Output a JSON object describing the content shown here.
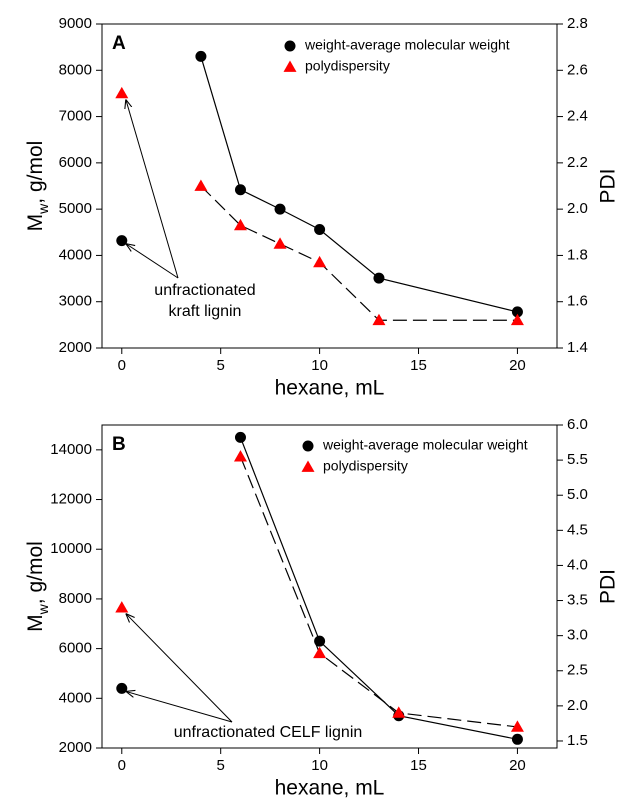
{
  "chart_data": [
    {
      "type": "line",
      "panel": "A",
      "ylabel": [
        "M",
        "w",
        ", g/mol"
      ],
      "y2label": "PDI",
      "xlabel": "hexane, mL",
      "x": [
        4,
        6,
        8,
        10,
        13,
        20
      ],
      "series": [
        {
          "name": "weight-average molecular weight",
          "color": "#000000",
          "marker": "circle",
          "linestyle": "solid",
          "values": [
            8300,
            5420,
            5000,
            4560,
            3510,
            2780
          ]
        },
        {
          "name": "polydispersity",
          "color": "#ff0000",
          "marker": "triangle",
          "linestyle": "dashed",
          "axis": "y2",
          "values": [
            2.1,
            1.93,
            1.85,
            1.77,
            1.52,
            1.52
          ]
        }
      ],
      "annotation": {
        "text": [
          "unfractionated",
          "kraft lignin"
        ],
        "x": 0,
        "values": [
          4320,
          2.5
        ]
      },
      "xlim": [
        -1,
        22
      ],
      "xticks": [
        0,
        5,
        10,
        15,
        20
      ],
      "ylim": [
        2000,
        9000
      ],
      "yticks": [
        2000,
        3000,
        4000,
        5000,
        6000,
        7000,
        8000,
        9000
      ],
      "y2lim": [
        1.4,
        2.8
      ],
      "y2ticks": [
        1.4,
        1.6,
        1.8,
        {
          "value": 2,
          "label": "2.0"
        },
        2.2,
        2.4,
        2.6,
        2.8
      ]
    },
    {
      "type": "line",
      "panel": "B",
      "ylabel": [
        "M",
        "w",
        ", g/mol"
      ],
      "y2label": "PDI",
      "xlabel": "hexane, mL",
      "x": [
        6,
        10,
        14,
        20
      ],
      "series": [
        {
          "name": "weight-average molecular weight",
          "color": "#000000",
          "marker": "circle",
          "linestyle": "solid",
          "values": [
            14500,
            6300,
            3300,
            2350
          ]
        },
        {
          "name": "polydispersity",
          "color": "#ff0000",
          "marker": "triangle",
          "linestyle": "dashed",
          "axis": "y2",
          "values": [
            5.55,
            2.75,
            1.9,
            1.7
          ]
        }
      ],
      "annotation": {
        "text": [
          "unfractionated CELF lignin"
        ],
        "x": 0,
        "values": [
          4400,
          3.4
        ]
      },
      "xlim": [
        -1,
        22
      ],
      "xticks": [
        0,
        5,
        10,
        15,
        20
      ],
      "ylim": [
        2000,
        15000
      ],
      "yticks": [
        2000,
        4000,
        6000,
        8000,
        10000,
        12000,
        14000
      ],
      "y2lim": [
        1.4,
        6.0
      ],
      "y2ticks": [
        1.5,
        {
          "value": 2,
          "label": "2.0"
        },
        2.5,
        {
          "value": 3,
          "label": "3.0"
        },
        3.5,
        {
          "value": 4,
          "label": "4.0"
        },
        4.5,
        {
          "value": 5,
          "label": "5.0"
        },
        5.5,
        {
          "value": 6,
          "label": "6.0"
        }
      ]
    }
  ]
}
